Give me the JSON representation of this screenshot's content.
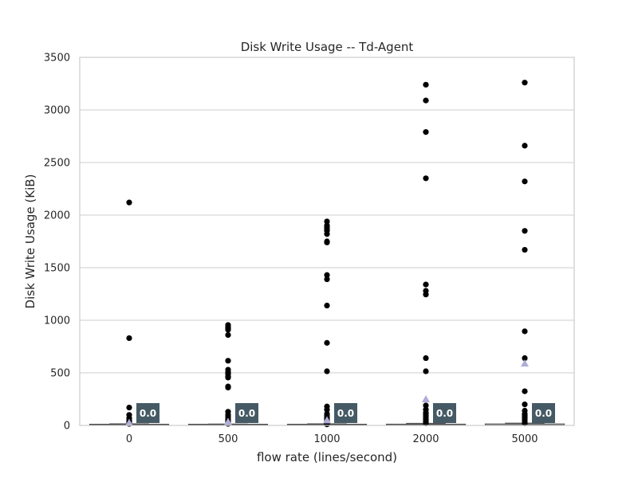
{
  "chart_data": {
    "type": "boxplot",
    "title": "Disk Write Usage -- Td-Agent",
    "xlabel": "flow rate (lines/second)",
    "ylabel": "Disk Write Usage (KiB)",
    "categories": [
      "0",
      "500",
      "1000",
      "2000",
      "5000"
    ],
    "ylim": [
      0,
      3500
    ],
    "yticks": [
      "0",
      "500",
      "1000",
      "1500",
      "2000",
      "2500",
      "3000",
      "3500"
    ],
    "grid": true,
    "median_labels": [
      "0.0",
      "0.0",
      "0.0",
      "0.0",
      "0.0"
    ],
    "median_label_color": "#455a64",
    "mean_marker_color": "#b0aed6",
    "box_edge_color": "#444444",
    "series": [
      {
        "category": "0",
        "median": 0,
        "q1": 0,
        "q3": 8,
        "mean": 26,
        "outliers": [
          2120,
          830,
          170,
          100,
          70,
          50,
          40,
          30,
          20,
          15
        ]
      },
      {
        "category": "500",
        "median": 0,
        "q1": 0,
        "q3": 6,
        "mean": 35,
        "outliers": [
          955,
          935,
          920,
          910,
          860,
          615,
          530,
          505,
          490,
          465,
          455,
          370,
          360,
          130,
          100,
          80,
          60,
          40,
          25,
          15
        ]
      },
      {
        "category": "1000",
        "median": 0,
        "q1": 0,
        "q3": 8,
        "mean": 50,
        "outliers": [
          1940,
          1900,
          1880,
          1860,
          1850,
          1820,
          1750,
          1740,
          1430,
          1390,
          1140,
          785,
          515,
          180,
          150,
          110,
          90,
          70,
          55,
          40,
          30,
          20,
          10
        ]
      },
      {
        "category": "2000",
        "median": 0,
        "q1": 0,
        "q3": 12,
        "mean": 250,
        "outliers": [
          3240,
          3090,
          2790,
          2350,
          1340,
          1280,
          1245,
          640,
          515,
          190,
          150,
          120,
          100,
          80,
          60,
          40,
          30,
          20
        ]
      },
      {
        "category": "5000",
        "median": 0,
        "q1": 0,
        "q3": 14,
        "mean": 590,
        "outliers": [
          3260,
          2660,
          2320,
          1850,
          1670,
          895,
          640,
          325,
          200,
          140,
          110,
          90,
          70,
          50,
          30,
          20
        ]
      }
    ]
  }
}
